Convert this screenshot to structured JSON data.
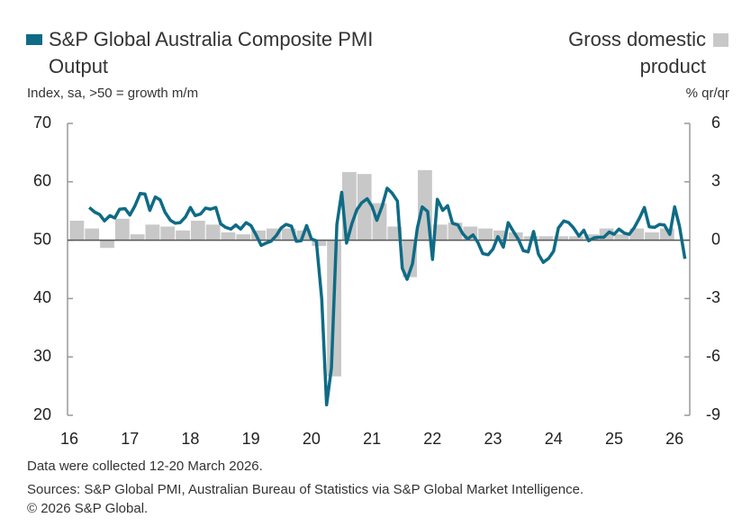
{
  "chart_data": {
    "type": "line",
    "y_axis_label": "Index, sa, >50 = growth m/m",
    "y2_axis_label": "% qr/qr",
    "notes": [
      "Data were collected 12-20 March 2026.",
      "Sources: S&P Global PMI, Australian Bureau of Statistics via S&P Global Market Intelligence.",
      "© 2026 S&P Global."
    ],
    "xlim": [
      2016,
      2026.25
    ],
    "xticks": [
      {
        "value": 2016,
        "label": "16"
      },
      {
        "value": 2017,
        "label": "17"
      },
      {
        "value": 2018,
        "label": "18"
      },
      {
        "value": 2019,
        "label": "19"
      },
      {
        "value": 2020,
        "label": "20"
      },
      {
        "value": 2021,
        "label": "21"
      },
      {
        "value": 2022,
        "label": "22"
      },
      {
        "value": 2023,
        "label": "23"
      },
      {
        "value": 2024,
        "label": "24"
      },
      {
        "value": 2025,
        "label": "25"
      },
      {
        "value": 2026,
        "label": "26"
      }
    ],
    "ylim": [
      20,
      70
    ],
    "yticks": [
      20,
      30,
      40,
      50,
      60,
      70
    ],
    "y2lim": [
      -9,
      6
    ],
    "y2ticks": [
      -9,
      -6,
      -3,
      0,
      3,
      6
    ],
    "series": [
      {
        "name": "S&P Global Australia Composite PMI Output",
        "color": "#0f6b85",
        "axis": "y",
        "x": [
          2016.33,
          2016.42,
          2016.5,
          2016.58,
          2016.67,
          2016.75,
          2016.83,
          2016.92,
          2017,
          2017.08,
          2017.17,
          2017.25,
          2017.33,
          2017.42,
          2017.5,
          2017.58,
          2017.67,
          2017.75,
          2017.83,
          2017.92,
          2018,
          2018.08,
          2018.17,
          2018.25,
          2018.33,
          2018.42,
          2018.5,
          2018.58,
          2018.67,
          2018.75,
          2018.83,
          2018.92,
          2019,
          2019.08,
          2019.17,
          2019.25,
          2019.33,
          2019.42,
          2019.5,
          2019.58,
          2019.67,
          2019.75,
          2019.83,
          2019.92,
          2020,
          2020.08,
          2020.17,
          2020.25,
          2020.33,
          2020.42,
          2020.5,
          2020.58,
          2020.67,
          2020.75,
          2020.83,
          2020.92,
          2021,
          2021.08,
          2021.17,
          2021.25,
          2021.33,
          2021.42,
          2021.5,
          2021.58,
          2021.67,
          2021.75,
          2021.83,
          2021.92,
          2022,
          2022.08,
          2022.17,
          2022.25,
          2022.33,
          2022.42,
          2022.5,
          2022.58,
          2022.67,
          2022.75,
          2022.83,
          2022.92,
          2023,
          2023.08,
          2023.17,
          2023.25,
          2023.33,
          2023.42,
          2023.5,
          2023.58,
          2023.67,
          2023.75,
          2023.83,
          2023.92,
          2024,
          2024.08,
          2024.17,
          2024.25,
          2024.33,
          2024.42,
          2024.5,
          2024.58,
          2024.67,
          2024.75,
          2024.83,
          2024.92,
          2025,
          2025.08,
          2025.17,
          2025.25,
          2025.33,
          2025.42,
          2025.5,
          2025.58,
          2025.67,
          2025.75,
          2025.83,
          2025.92,
          2026,
          2026.08,
          2026.17
        ],
        "values": [
          55.6,
          54.8,
          54.4,
          53.3,
          54.2,
          53.8,
          55.3,
          55.4,
          54.3,
          55.8,
          58.0,
          57.9,
          55.1,
          57.4,
          56.9,
          54.8,
          53.4,
          52.9,
          53.0,
          54.0,
          55.6,
          54.2,
          54.5,
          55.5,
          55.3,
          55.6,
          52.8,
          52.2,
          51.9,
          52.6,
          51.9,
          53.0,
          52.5,
          51.0,
          49.1,
          49.5,
          49.8,
          50.8,
          52.1,
          52.7,
          52.4,
          49.8,
          49.9,
          52.5,
          50.2,
          49.9,
          39.9,
          21.8,
          28.1,
          52.7,
          58.2,
          49.5,
          52.9,
          55.2,
          56.4,
          57.1,
          55.8,
          53.4,
          55.9,
          58.9,
          58.1,
          56.7,
          45.2,
          43.3,
          46.0,
          52.1,
          55.7,
          54.9,
          46.7,
          57.0,
          55.1,
          55.9,
          52.9,
          52.6,
          51.1,
          50.2,
          50.9,
          49.6,
          47.7,
          47.5,
          48.5,
          50.6,
          48.8,
          53.0,
          51.6,
          50.1,
          48.2,
          48.0,
          51.5,
          47.6,
          46.2,
          46.9,
          48.1,
          52.1,
          53.3,
          53.0,
          52.1,
          50.7,
          51.7,
          49.9,
          50.4,
          50.5,
          50.5,
          51.4,
          51.0,
          51.9,
          51.2,
          51.0,
          52.1,
          53.8,
          55.6,
          52.3,
          52.2,
          52.7,
          52.6,
          51.0,
          55.7,
          52.4,
          46.8
        ]
      },
      {
        "name": "Gross domestic product",
        "color": "#c8c8c8",
        "axis": "y2",
        "type": "bar",
        "x": [
          2016,
          2016.25,
          2016.5,
          2016.75,
          2017,
          2017.25,
          2017.5,
          2017.75,
          2018,
          2018.25,
          2018.5,
          2018.75,
          2019,
          2019.25,
          2019.5,
          2019.75,
          2020,
          2020.25,
          2020.5,
          2020.75,
          2021,
          2021.25,
          2021.5,
          2021.75,
          2022,
          2022.25,
          2022.5,
          2022.75,
          2023,
          2023.25,
          2023.5,
          2023.75,
          2024,
          2024.25,
          2024.5,
          2024.75,
          2025,
          2025.25,
          2025.5,
          2025.75
        ],
        "values": [
          1.0,
          0.6,
          -0.4,
          1.1,
          0.3,
          0.8,
          0.7,
          0.5,
          1.0,
          0.8,
          0.4,
          0.3,
          0.5,
          0.6,
          0.6,
          0.5,
          -0.3,
          -7.0,
          3.5,
          3.4,
          1.9,
          0.7,
          -1.9,
          3.6,
          0.8,
          0.9,
          0.7,
          0.6,
          0.5,
          0.4,
          0.2,
          0.2,
          0.2,
          0.2,
          0.3,
          0.6,
          0.3,
          0.6,
          0.4,
          0.6
        ]
      }
    ]
  }
}
